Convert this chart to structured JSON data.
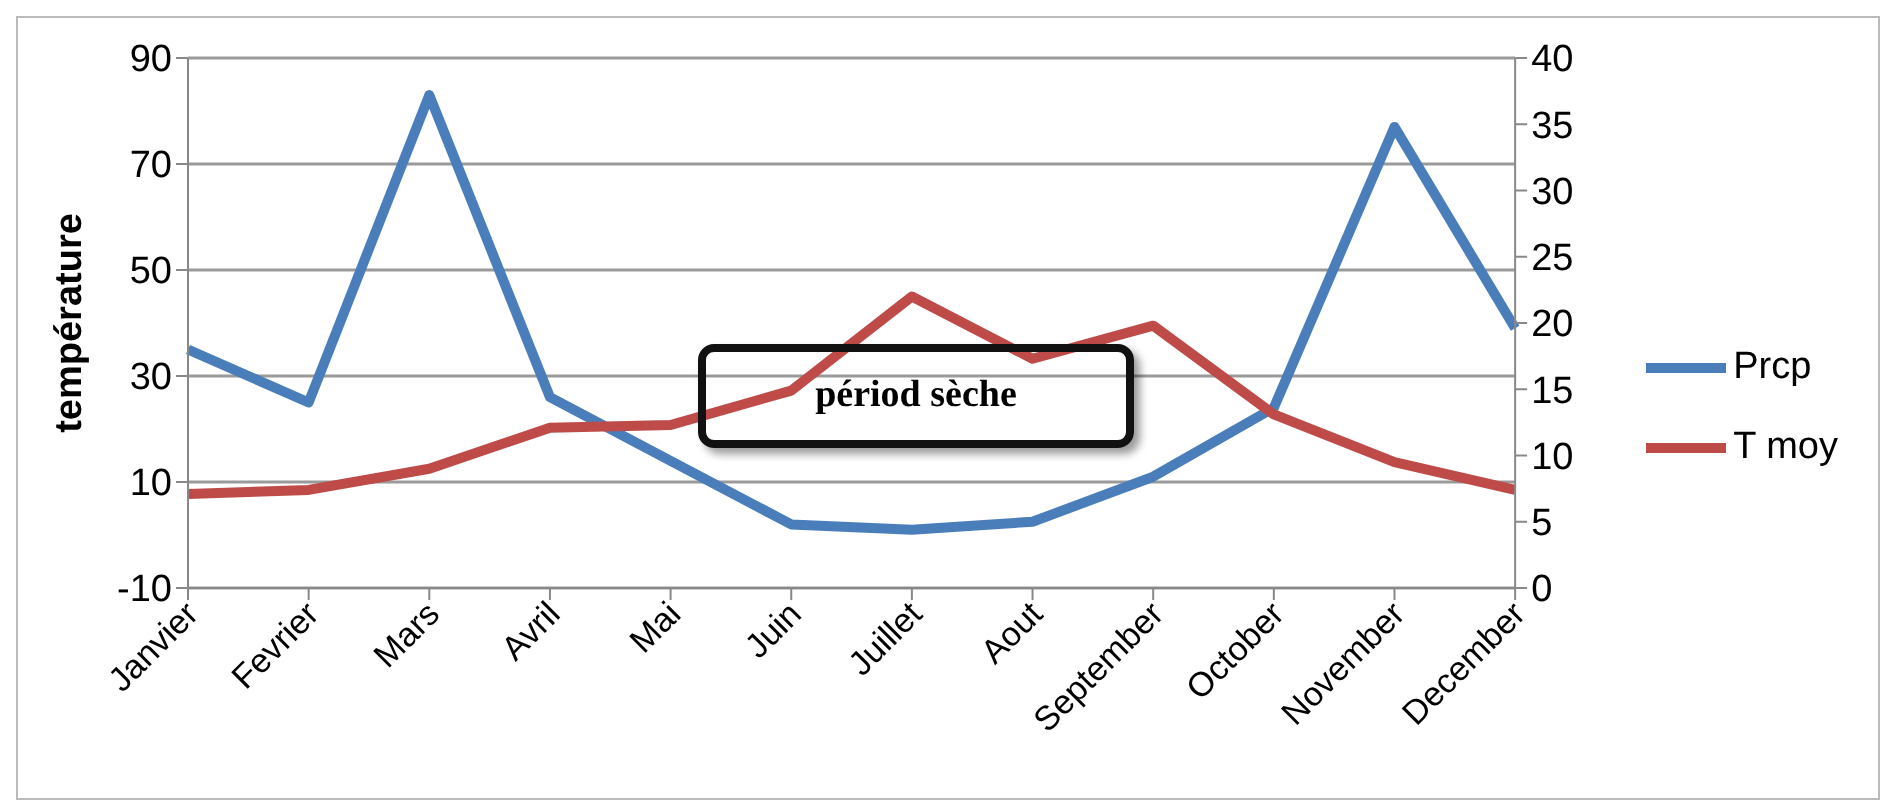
{
  "chart_data": {
    "type": "line",
    "ylabel": "température",
    "categories": [
      "Janvier",
      "Fevrier",
      "Mars",
      "Avril",
      "Mai",
      "Juin",
      "Juillet",
      "Aout",
      "September",
      "October",
      "November",
      "December"
    ],
    "series": [
      {
        "name": "Prcp",
        "color": "#4a7ebb",
        "values": [
          35,
          25,
          83,
          26,
          14,
          2,
          1,
          2.5,
          11,
          24,
          77,
          39
        ]
      },
      {
        "name": "T moy",
        "color": "#be4b48",
        "axis": "y2",
        "values": [
          7.1,
          7.4,
          9.0,
          12.1,
          12.3,
          14.9,
          22.0,
          17.3,
          19.8,
          13.1,
          9.5,
          7.4
        ]
      }
    ],
    "ylim": [
      -10,
      90
    ],
    "yticks": [
      -10,
      10,
      30,
      50,
      70,
      90
    ],
    "y2lim": [
      0,
      40
    ],
    "y2ticks": [
      0,
      5,
      10,
      15,
      20,
      25,
      30,
      35,
      40
    ],
    "grid": "y",
    "legend": "right",
    "marker": "none",
    "line_style": "solid",
    "annotations": [
      "périod sèche"
    ]
  }
}
